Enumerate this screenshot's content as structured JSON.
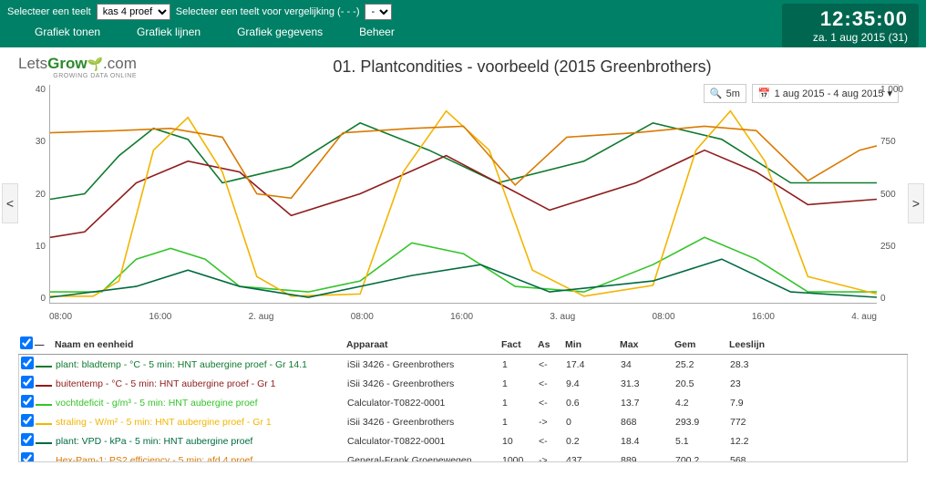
{
  "topbar": {
    "select1_label": "Selecteer een teelt",
    "select1_value": "kas 4 proef",
    "select2_label": "Selecteer een teelt voor vergelijking (- - -)",
    "select2_value": "-",
    "menu": [
      "Grafiek tonen",
      "Grafiek lijnen",
      "Grafiek gegevens",
      "Beheer"
    ],
    "clock_time": "12:35:00",
    "clock_date": "za. 1 aug 2015 (31)"
  },
  "logo": {
    "part1": "Lets",
    "part2": "Grow",
    "part3": ".com",
    "sub": "GROWING DATA ONLINE"
  },
  "chart": {
    "title": "01. Plantcondities - voorbeeld (2015 Greenbrothers)",
    "zoom_label": "5m",
    "date_range": "1 aug 2015 - 4 aug 2015",
    "y_left": {
      "min": 0,
      "max": 40,
      "ticks": [
        40,
        30,
        20,
        10,
        0
      ]
    },
    "y_right": {
      "min": 0,
      "max": 1000,
      "ticks": [
        "1 000",
        "750",
        "500",
        "250",
        "0"
      ]
    },
    "x_ticks": [
      "08:00",
      "16:00",
      "2. aug",
      "08:00",
      "16:00",
      "3. aug",
      "08:00",
      "16:00",
      "4. aug"
    ],
    "background": "#ffffff",
    "series": [
      {
        "key": "bladtemp",
        "color": "#0f7a2f",
        "axis": "left",
        "points": [
          [
            0,
            19
          ],
          [
            8,
            20
          ],
          [
            16,
            27
          ],
          [
            24,
            32
          ],
          [
            32,
            30
          ],
          [
            40,
            22
          ],
          [
            56,
            25
          ],
          [
            72,
            33
          ],
          [
            88,
            28
          ],
          [
            104,
            22
          ],
          [
            124,
            26
          ],
          [
            140,
            33
          ],
          [
            156,
            30
          ],
          [
            172,
            22
          ],
          [
            192,
            22
          ]
        ]
      },
      {
        "key": "buitentemp",
        "color": "#8f1c1c",
        "axis": "left",
        "points": [
          [
            0,
            12
          ],
          [
            8,
            13
          ],
          [
            20,
            22
          ],
          [
            32,
            26
          ],
          [
            44,
            24
          ],
          [
            56,
            16
          ],
          [
            72,
            20
          ],
          [
            92,
            27
          ],
          [
            104,
            22
          ],
          [
            116,
            17
          ],
          [
            136,
            22
          ],
          [
            152,
            28
          ],
          [
            164,
            24
          ],
          [
            176,
            18
          ],
          [
            192,
            19
          ]
        ]
      },
      {
        "key": "vocht",
        "color": "#35c42b",
        "axis": "left",
        "points": [
          [
            0,
            2
          ],
          [
            12,
            2
          ],
          [
            20,
            8
          ],
          [
            28,
            10
          ],
          [
            36,
            8
          ],
          [
            44,
            3
          ],
          [
            60,
            2
          ],
          [
            72,
            4
          ],
          [
            84,
            11
          ],
          [
            96,
            9
          ],
          [
            108,
            3
          ],
          [
            124,
            2
          ],
          [
            140,
            7
          ],
          [
            152,
            12
          ],
          [
            164,
            8
          ],
          [
            176,
            2
          ],
          [
            192,
            2
          ]
        ]
      },
      {
        "key": "straling",
        "color": "#f2b500",
        "axis": "right",
        "points": [
          [
            0,
            30
          ],
          [
            10,
            30
          ],
          [
            16,
            100
          ],
          [
            24,
            700
          ],
          [
            32,
            850
          ],
          [
            40,
            600
          ],
          [
            48,
            120
          ],
          [
            56,
            30
          ],
          [
            72,
            40
          ],
          [
            82,
            600
          ],
          [
            92,
            880
          ],
          [
            102,
            700
          ],
          [
            112,
            150
          ],
          [
            124,
            30
          ],
          [
            140,
            80
          ],
          [
            150,
            700
          ],
          [
            158,
            880
          ],
          [
            166,
            650
          ],
          [
            176,
            120
          ],
          [
            192,
            40
          ]
        ]
      },
      {
        "key": "vpd",
        "color": "#006b3f",
        "axis": "left",
        "points": [
          [
            0,
            1
          ],
          [
            20,
            3
          ],
          [
            32,
            6
          ],
          [
            44,
            3
          ],
          [
            60,
            1
          ],
          [
            84,
            5
          ],
          [
            100,
            7
          ],
          [
            116,
            2
          ],
          [
            140,
            4
          ],
          [
            156,
            8
          ],
          [
            172,
            2
          ],
          [
            192,
            1
          ]
        ]
      },
      {
        "key": "hexpam",
        "color": "#d97a00",
        "axis": "right",
        "points": [
          [
            0,
            780
          ],
          [
            16,
            790
          ],
          [
            28,
            800
          ],
          [
            40,
            760
          ],
          [
            48,
            500
          ],
          [
            56,
            480
          ],
          [
            68,
            780
          ],
          [
            84,
            800
          ],
          [
            96,
            810
          ],
          [
            108,
            540
          ],
          [
            120,
            760
          ],
          [
            136,
            780
          ],
          [
            152,
            810
          ],
          [
            164,
            790
          ],
          [
            176,
            560
          ],
          [
            188,
            700
          ],
          [
            192,
            720
          ]
        ]
      }
    ]
  },
  "legend": {
    "columns": [
      "Naam en eenheid",
      "Apparaat",
      "Fact",
      "As",
      "Min",
      "Max",
      "Gem",
      "Leeslijn"
    ],
    "rows": [
      {
        "color": "#0f7a2f",
        "name": "plant: bladtemp - °C - 5 min: HNT aubergine proef - Gr 14.1",
        "apparaat": "iSii 3426 - Greenbrothers",
        "fact": "1",
        "as": "<-",
        "min": "17.4",
        "max": "34",
        "gem": "25.2",
        "lees": "28.3"
      },
      {
        "color": "#8f1c1c",
        "name": "buitentemp - °C - 5 min: HNT aubergine proef - Gr 1",
        "apparaat": "iSii 3426 - Greenbrothers",
        "fact": "1",
        "as": "<-",
        "min": "9.4",
        "max": "31.3",
        "gem": "20.5",
        "lees": "23"
      },
      {
        "color": "#35c42b",
        "name": "vochtdeficit - g/m³ - 5 min: HNT aubergine proef",
        "apparaat": "Calculator-T0822-0001",
        "fact": "1",
        "as": "<-",
        "min": "0.6",
        "max": "13.7",
        "gem": "4.2",
        "lees": "7.9"
      },
      {
        "color": "#f2b500",
        "name": "straling - W/m² - 5 min: HNT aubergine proef - Gr 1",
        "apparaat": "iSii 3426 - Greenbrothers",
        "fact": "1",
        "as": "->",
        "min": "0",
        "max": "868",
        "gem": "293.9",
        "lees": "772"
      },
      {
        "color": "#006b3f",
        "name": "plant: VPD - kPa - 5 min: HNT aubergine proef",
        "apparaat": "Calculator-T0822-0001",
        "fact": "10",
        "as": "<-",
        "min": "0.2",
        "max": "18.4",
        "gem": "5.1",
        "lees": "12.2"
      },
      {
        "color": "#d97a00",
        "name": "Hex-Pam-1: PS2 efficiency - 5 min: afd 4 proef",
        "apparaat": "General-Frank Groenewegen",
        "fact": "1000",
        "as": "->",
        "min": "437",
        "max": "889",
        "gem": "700.2",
        "lees": "568"
      }
    ]
  }
}
